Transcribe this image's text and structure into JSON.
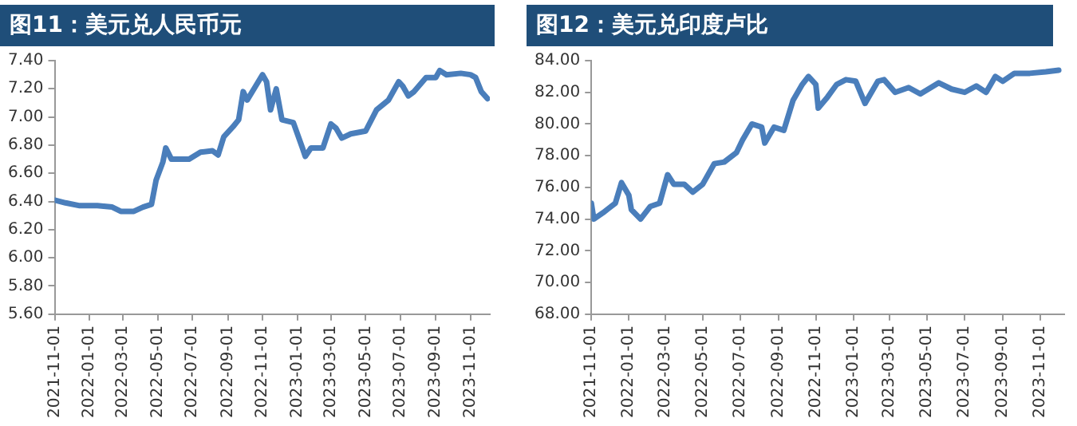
{
  "chart_data": [
    {
      "type": "line",
      "title": "图11：美元兑人民币元",
      "grid": false,
      "legend": false,
      "marker": "none",
      "line_style": "solid",
      "xlim": [
        "2021-11-01",
        "2023-12-05"
      ],
      "xticks": [
        "2021-11-01",
        "2022-01-01",
        "2022-03-01",
        "2022-05-01",
        "2022-07-01",
        "2022-09-01",
        "2022-11-01",
        "2023-01-01",
        "2023-03-01",
        "2023-05-01",
        "2023-07-01",
        "2023-09-01",
        "2023-11-01"
      ],
      "ylim": [
        5.6,
        7.4
      ],
      "yticks": [
        {
          "value": 5.6,
          "label": "5.60"
        },
        {
          "value": 5.8,
          "label": "5.80"
        },
        {
          "value": 6.0,
          "label": "6.00"
        },
        {
          "value": 6.2,
          "label": "6.20"
        },
        {
          "value": 6.4,
          "label": "6.40"
        },
        {
          "value": 6.6,
          "label": "6.60"
        },
        {
          "value": 6.8,
          "label": "6.80"
        },
        {
          "value": 7.0,
          "label": "7.00"
        },
        {
          "value": 7.2,
          "label": "7.20"
        },
        {
          "value": 7.4,
          "label": "7.40"
        }
      ],
      "x": [
        "2021-11-01",
        "2021-11-20",
        "2021-12-15",
        "2022-01-15",
        "2022-02-10",
        "2022-02-25",
        "2022-03-20",
        "2022-04-05",
        "2022-04-20",
        "2022-04-28",
        "2022-05-10",
        "2022-05-15",
        "2022-05-25",
        "2022-06-10",
        "2022-06-25",
        "2022-07-15",
        "2022-08-05",
        "2022-08-15",
        "2022-08-25",
        "2022-09-10",
        "2022-09-20",
        "2022-09-28",
        "2022-10-05",
        "2022-10-20",
        "2022-11-01",
        "2022-11-08",
        "2022-11-15",
        "2022-11-25",
        "2022-12-05",
        "2022-12-25",
        "2023-01-10",
        "2023-01-15",
        "2023-01-25",
        "2023-02-15",
        "2023-03-01",
        "2023-03-10",
        "2023-03-20",
        "2023-04-05",
        "2023-05-01",
        "2023-05-20",
        "2023-06-10",
        "2023-06-28",
        "2023-07-05",
        "2023-07-15",
        "2023-07-25",
        "2023-08-15",
        "2023-09-01",
        "2023-09-08",
        "2023-09-20",
        "2023-10-15",
        "2023-11-01",
        "2023-11-10",
        "2023-11-20",
        "2023-12-01"
      ],
      "series": [
        {
          "color": "#4a7ebb",
          "values": [
            6.41,
            6.39,
            6.37,
            6.37,
            6.36,
            6.33,
            6.33,
            6.36,
            6.38,
            6.55,
            6.68,
            6.78,
            6.7,
            6.7,
            6.7,
            6.75,
            6.76,
            6.73,
            6.86,
            6.93,
            6.98,
            7.18,
            7.12,
            7.22,
            7.3,
            7.25,
            7.05,
            7.2,
            6.98,
            6.96,
            6.78,
            6.72,
            6.78,
            6.78,
            6.95,
            6.92,
            6.85,
            6.88,
            6.9,
            7.05,
            7.12,
            7.25,
            7.22,
            7.15,
            7.18,
            7.28,
            7.28,
            7.33,
            7.3,
            7.31,
            7.3,
            7.28,
            7.18,
            7.13
          ]
        }
      ]
    },
    {
      "type": "line",
      "title": "图12：美元兑印度卢比",
      "grid": false,
      "legend": false,
      "marker": "none",
      "line_style": "solid",
      "xlim": [
        "2021-11-01",
        "2023-12-10"
      ],
      "xticks": [
        "2021-11-01",
        "2022-01-01",
        "2022-03-01",
        "2022-05-01",
        "2022-07-01",
        "2022-09-01",
        "2022-11-01",
        "2023-01-01",
        "2023-03-01",
        "2023-05-01",
        "2023-07-01",
        "2023-09-01",
        "2023-11-01"
      ],
      "ylim": [
        68,
        84
      ],
      "yticks": [
        {
          "value": 68,
          "label": "68.00"
        },
        {
          "value": 70,
          "label": "70.00"
        },
        {
          "value": 72,
          "label": "72.00"
        },
        {
          "value": 74,
          "label": "74.00"
        },
        {
          "value": 76,
          "label": "76.00"
        },
        {
          "value": 78,
          "label": "78.00"
        },
        {
          "value": 80,
          "label": "80.00"
        },
        {
          "value": 82,
          "label": "82.00"
        },
        {
          "value": 84,
          "label": "84.00"
        }
      ],
      "x": [
        "2021-11-01",
        "2021-11-05",
        "2021-11-20",
        "2021-12-10",
        "2021-12-20",
        "2022-01-01",
        "2022-01-05",
        "2022-01-20",
        "2022-02-05",
        "2022-02-20",
        "2022-03-05",
        "2022-03-15",
        "2022-04-01",
        "2022-04-15",
        "2022-05-01",
        "2022-05-20",
        "2022-06-05",
        "2022-06-25",
        "2022-07-05",
        "2022-07-20",
        "2022-08-05",
        "2022-08-10",
        "2022-08-25",
        "2022-09-10",
        "2022-09-25",
        "2022-10-10",
        "2022-10-20",
        "2022-11-01",
        "2022-11-05",
        "2022-11-20",
        "2022-12-05",
        "2022-12-20",
        "2023-01-05",
        "2023-01-20",
        "2023-02-10",
        "2023-02-20",
        "2023-03-10",
        "2023-04-01",
        "2023-04-20",
        "2023-05-20",
        "2023-06-10",
        "2023-07-01",
        "2023-07-20",
        "2023-08-05",
        "2023-08-20",
        "2023-09-01",
        "2023-09-20",
        "2023-10-15",
        "2023-11-10",
        "2023-12-01"
      ],
      "series": [
        {
          "color": "#4a7ebb",
          "values": [
            75.0,
            74.0,
            74.4,
            75.0,
            76.3,
            75.5,
            74.6,
            74.0,
            74.8,
            75.0,
            76.8,
            76.2,
            76.2,
            75.7,
            76.2,
            77.5,
            77.6,
            78.2,
            79.0,
            80.0,
            79.8,
            78.8,
            79.8,
            79.6,
            81.5,
            82.5,
            83.0,
            82.5,
            81.0,
            81.7,
            82.5,
            82.8,
            82.7,
            81.3,
            82.7,
            82.8,
            82.0,
            82.3,
            81.9,
            82.6,
            82.2,
            82.0,
            82.4,
            82.0,
            83.0,
            82.7,
            83.2,
            83.2,
            83.3,
            83.4
          ]
        }
      ]
    }
  ]
}
